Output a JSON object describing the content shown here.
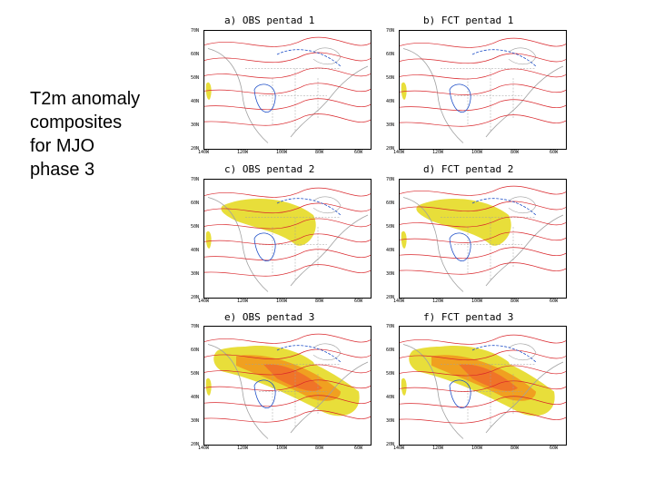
{
  "caption": {
    "line1": "T2m anomaly",
    "line2": "composites",
    "line3": "for MJO",
    "line4": "phase 3"
  },
  "panels": [
    {
      "title": "a) OBS pentad 1"
    },
    {
      "title": "b) FCT pentad 1"
    },
    {
      "title": "c) OBS pentad 2"
    },
    {
      "title": "d) FCT pentad 2"
    },
    {
      "title": "e) OBS pentad 3"
    },
    {
      "title": "f) FCT pentad 3"
    }
  ],
  "lat_labels": [
    "70N",
    "60N",
    "50N",
    "40N",
    "30N",
    "20N"
  ],
  "lon_labels": [
    "140W",
    "120W",
    "100W",
    "80W",
    "60W"
  ],
  "colors": {
    "warm_contour": "#d9262b",
    "cold_contour": "#2050c8",
    "shade_light": "#e8de3a",
    "shade_mid": "#f0a020",
    "shade_strong": "#f07428",
    "map_grey": "#a0a0a0"
  }
}
